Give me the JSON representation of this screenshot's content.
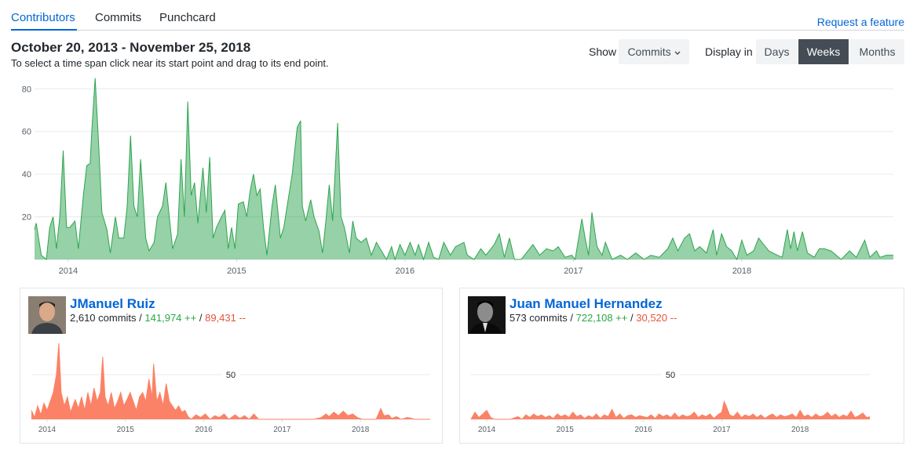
{
  "nav": {
    "tabs": [
      "Contributors",
      "Commits",
      "Punchcard"
    ],
    "request_feature": "Request a feature"
  },
  "header": {
    "date_range": "October 20, 2013 - November 25, 2018",
    "hint": "To select a time span click near its start point and drag to its end point.",
    "show_label": "Show",
    "show_select": "Commits",
    "display_label": "Display in",
    "display_options": [
      "Days",
      "Weeks",
      "Months"
    ]
  },
  "chart_data": {
    "type": "area",
    "xlim": [
      2013.8,
      2018.9
    ],
    "ylim": [
      0,
      86
    ],
    "xticks": [
      2014,
      2015,
      2016,
      2017,
      2018
    ],
    "yticks": [
      20,
      40,
      60,
      80
    ],
    "grid": true,
    "series": [
      {
        "color": "#2ea44f",
        "x": [
          2013.8,
          2013.81,
          2013.84,
          2013.87,
          2013.89,
          2013.91,
          2013.93,
          2013.95,
          2013.97,
          2013.99,
          2014.01,
          2014.04,
          2014.06,
          2014.09,
          2014.11,
          2014.13,
          2014.14,
          2014.16,
          2014.18,
          2014.2,
          2014.23,
          2014.25,
          2014.28,
          2014.3,
          2014.33,
          2014.35,
          2014.37,
          2014.39,
          2014.41,
          2014.43,
          2014.46,
          2014.48,
          2014.51,
          2014.53,
          2014.56,
          2014.58,
          2014.6,
          2014.62,
          2014.65,
          2014.67,
          2014.69,
          2014.71,
          2014.73,
          2014.75,
          2014.77,
          2014.8,
          2014.82,
          2014.84,
          2014.86,
          2014.88,
          2014.91,
          2014.93,
          2014.95,
          2014.97,
          2014.99,
          2015.01,
          2015.04,
          2015.06,
          2015.08,
          2015.1,
          2015.12,
          2015.14,
          2015.16,
          2015.18,
          2015.21,
          2015.23,
          2015.26,
          2015.28,
          2015.31,
          2015.33,
          2015.36,
          2015.38,
          2015.39,
          2015.41,
          2015.44,
          2015.46,
          2015.49,
          2015.51,
          2015.53,
          2015.55,
          2015.57,
          2015.6,
          2015.62,
          2015.64,
          2015.67,
          2015.69,
          2015.71,
          2015.74,
          2015.77,
          2015.8,
          2015.83,
          2015.86,
          2015.89,
          2015.92,
          2015.94,
          2015.97,
          2016.0,
          2016.03,
          2016.06,
          2016.08,
          2016.11,
          2016.14,
          2016.17,
          2016.2,
          2016.23,
          2016.27,
          2016.3,
          2016.35,
          2016.37,
          2016.41,
          2016.45,
          2016.48,
          2016.53,
          2016.56,
          2016.59,
          2016.62,
          2016.65,
          2016.69,
          2016.73,
          2016.76,
          2016.8,
          2016.84,
          2016.88,
          2016.91,
          2016.95,
          2016.99,
          2017.01,
          2017.05,
          2017.07,
          2017.09,
          2017.11,
          2017.14,
          2017.17,
          2017.19,
          2017.23,
          2017.28,
          2017.32,
          2017.37,
          2017.42,
          2017.46,
          2017.51,
          2017.56,
          2017.59,
          2017.62,
          2017.66,
          2017.69,
          2017.72,
          2017.75,
          2017.79,
          2017.83,
          2017.85,
          2017.88,
          2017.91,
          2017.94,
          2017.97,
          2018.0,
          2018.03,
          2018.07,
          2018.1,
          2018.13,
          2018.16,
          2018.21,
          2018.24,
          2018.27,
          2018.29,
          2018.31,
          2018.33,
          2018.36,
          2018.39,
          2018.43,
          2018.46,
          2018.49,
          2018.53,
          2018.56,
          2018.59,
          2018.64,
          2018.68,
          2018.73,
          2018.76,
          2018.8,
          2018.82,
          2018.86,
          2018.9
        ],
        "values": [
          14,
          17,
          2,
          0,
          15,
          20,
          5,
          20,
          51,
          15,
          15,
          18,
          5,
          30,
          44,
          45,
          60,
          85,
          55,
          22,
          14,
          3,
          20,
          10,
          10,
          25,
          58,
          25,
          20,
          47,
          10,
          4,
          8,
          20,
          25,
          36,
          20,
          5,
          12,
          47,
          20,
          74,
          30,
          36,
          17,
          43,
          22,
          48,
          10,
          15,
          20,
          23,
          5,
          15,
          5,
          26,
          27,
          20,
          32,
          40,
          30,
          33,
          15,
          2,
          25,
          35,
          10,
          15,
          30,
          40,
          62,
          65,
          25,
          18,
          28,
          20,
          13,
          3,
          18,
          35,
          18,
          64,
          20,
          15,
          3,
          18,
          10,
          8,
          10,
          2,
          8,
          4,
          0,
          6,
          0,
          7,
          2,
          8,
          2,
          7,
          0,
          8,
          1,
          0,
          8,
          2,
          6,
          8,
          2,
          0,
          5,
          2,
          7,
          12,
          1,
          10,
          0,
          0,
          4,
          7,
          2,
          5,
          4,
          6,
          1,
          2,
          0,
          19,
          10,
          2,
          22,
          6,
          2,
          8,
          0,
          2,
          0,
          3,
          0,
          2,
          1,
          5,
          10,
          4,
          10,
          12,
          4,
          6,
          3,
          14,
          2,
          12,
          6,
          4,
          0,
          9,
          2,
          4,
          10,
          7,
          4,
          2,
          1,
          14,
          5,
          13,
          4,
          13,
          3,
          1,
          5,
          5,
          4,
          2,
          0,
          4,
          1,
          9,
          1,
          4,
          1,
          2,
          2
        ]
      }
    ]
  },
  "separator": "/",
  "contributors": [
    {
      "name": "JManuel Ruiz",
      "commits": "2,610 commits",
      "additions": "141,974 ++",
      "deletions": "89,431 --",
      "chart_data": {
        "type": "area",
        "xlim": [
          2013.8,
          2018.89
        ],
        "ylim": [
          0,
          85
        ],
        "xticks": [
          2014,
          2015,
          2016,
          2017,
          2018
        ],
        "yticks": [
          50
        ],
        "grid": true,
        "series": [
          {
            "color": "#fb8266",
            "x": [
              2013.8,
              2013.84,
              2013.88,
              2013.92,
              2013.96,
              2014.0,
              2014.04,
              2014.08,
              2014.12,
              2014.15,
              2014.18,
              2014.22,
              2014.26,
              2014.3,
              2014.36,
              2014.4,
              2014.44,
              2014.48,
              2014.52,
              2014.56,
              2014.6,
              2014.64,
              2014.68,
              2014.71,
              2014.74,
              2014.78,
              2014.82,
              2014.86,
              2014.9,
              2014.94,
              2014.98,
              2015.02,
              2015.06,
              2015.1,
              2015.14,
              2015.18,
              2015.22,
              2015.26,
              2015.3,
              2015.34,
              2015.36,
              2015.4,
              2015.44,
              2015.48,
              2015.52,
              2015.56,
              2015.6,
              2015.64,
              2015.68,
              2015.72,
              2015.76,
              2015.8,
              2015.84,
              2015.9,
              2015.96,
              2016.02,
              2016.08,
              2016.14,
              2016.2,
              2016.26,
              2016.32,
              2016.4,
              2016.46,
              2016.52,
              2016.58,
              2016.64,
              2016.7,
              2016.8,
              2017.0,
              2017.2,
              2017.4,
              2017.5,
              2017.56,
              2017.6,
              2017.66,
              2017.72,
              2017.78,
              2017.84,
              2017.9,
              2017.96,
              2018.02,
              2018.12,
              2018.2,
              2018.26,
              2018.3,
              2018.36,
              2018.4,
              2018.46,
              2018.52,
              2018.6,
              2018.7,
              2018.89
            ],
            "values": [
              10,
              2,
              15,
              5,
              18,
              10,
              20,
              30,
              50,
              85,
              30,
              15,
              25,
              8,
              22,
              12,
              25,
              10,
              30,
              15,
              35,
              20,
              30,
              70,
              25,
              15,
              30,
              12,
              20,
              30,
              15,
              22,
              30,
              20,
              10,
              25,
              30,
              20,
              45,
              25,
              62,
              20,
              30,
              15,
              40,
              20,
              15,
              10,
              15,
              8,
              10,
              3,
              0,
              5,
              2,
              6,
              0,
              4,
              2,
              6,
              0,
              5,
              1,
              4,
              0,
              6,
              0,
              0,
              0,
              0,
              0,
              2,
              6,
              3,
              8,
              4,
              9,
              4,
              6,
              2,
              0,
              0,
              0,
              12,
              4,
              5,
              1,
              3,
              0,
              2,
              0,
              0
            ]
          }
        ]
      }
    },
    {
      "name": "Juan Manuel Hernandez",
      "commits": "573 commits",
      "additions": "722,108 ++",
      "deletions": "30,520 --",
      "chart_data": {
        "type": "area",
        "xlim": [
          2013.8,
          2018.89
        ],
        "ylim": [
          0,
          85
        ],
        "xticks": [
          2014,
          2015,
          2016,
          2017,
          2018
        ],
        "yticks": [
          50
        ],
        "grid": true,
        "series": [
          {
            "color": "#fb8266",
            "x": [
              2013.8,
              2013.85,
              2013.9,
              2013.95,
              2014.0,
              2014.05,
              2014.1,
              2014.2,
              2014.3,
              2014.4,
              2014.45,
              2014.5,
              2014.55,
              2014.6,
              2014.65,
              2014.7,
              2014.75,
              2014.8,
              2014.85,
              2014.9,
              2014.95,
              2015.0,
              2015.05,
              2015.1,
              2015.15,
              2015.2,
              2015.25,
              2015.3,
              2015.35,
              2015.4,
              2015.45,
              2015.5,
              2015.55,
              2015.6,
              2015.65,
              2015.7,
              2015.75,
              2015.8,
              2015.85,
              2015.9,
              2015.95,
              2016.0,
              2016.05,
              2016.1,
              2016.15,
              2016.2,
              2016.25,
              2016.3,
              2016.35,
              2016.4,
              2016.45,
              2016.5,
              2016.55,
              2016.6,
              2016.65,
              2016.7,
              2016.75,
              2016.8,
              2016.85,
              2016.9,
              2016.95,
              2017.0,
              2017.03,
              2017.06,
              2017.1,
              2017.15,
              2017.2,
              2017.25,
              2017.3,
              2017.35,
              2017.4,
              2017.45,
              2017.5,
              2017.55,
              2017.6,
              2017.65,
              2017.7,
              2017.75,
              2017.8,
              2017.85,
              2017.9,
              2017.95,
              2018.0,
              2018.05,
              2018.1,
              2018.15,
              2018.2,
              2018.25,
              2018.3,
              2018.35,
              2018.4,
              2018.45,
              2018.5,
              2018.55,
              2018.6,
              2018.65,
              2018.7,
              2018.75,
              2018.8,
              2018.85,
              2018.89
            ],
            "values": [
              0,
              8,
              2,
              6,
              10,
              2,
              0,
              0,
              0,
              3,
              0,
              5,
              2,
              6,
              3,
              5,
              2,
              4,
              1,
              6,
              3,
              5,
              2,
              8,
              3,
              5,
              1,
              4,
              2,
              6,
              1,
              5,
              3,
              11,
              2,
              6,
              1,
              4,
              5,
              2,
              4,
              3,
              2,
              5,
              1,
              6,
              3,
              5,
              2,
              7,
              2,
              5,
              3,
              4,
              8,
              2,
              5,
              3,
              6,
              1,
              5,
              8,
              20,
              14,
              5,
              3,
              8,
              2,
              5,
              3,
              6,
              2,
              5,
              1,
              4,
              6,
              2,
              5,
              3,
              4,
              6,
              2,
              10,
              3,
              5,
              2,
              6,
              3,
              4,
              8,
              3,
              6,
              2,
              5,
              3,
              9,
              2,
              4,
              7,
              2,
              3
            ]
          }
        ]
      }
    }
  ]
}
